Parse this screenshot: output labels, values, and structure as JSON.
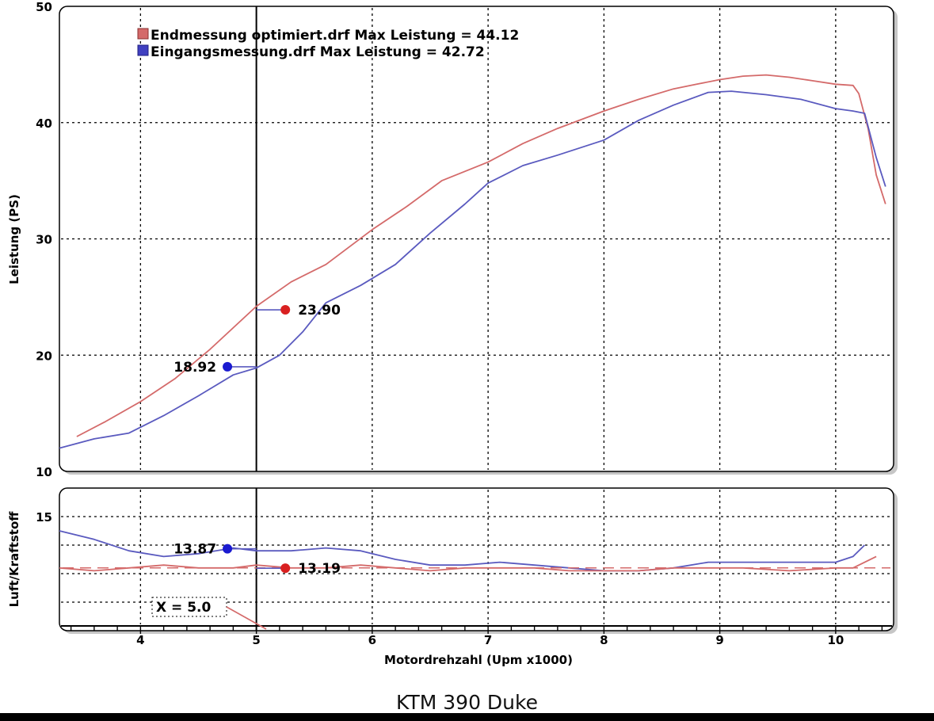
{
  "caption": "KTM 390 Duke",
  "colors": {
    "endmessung": "#d46a6a",
    "eingangsmessung": "#5a5abf",
    "marker_red": "#d92020",
    "marker_blue": "#1a1ad0"
  },
  "chart_data": [
    {
      "type": "line",
      "ylabel": "Leistung (PS)",
      "ylim": [
        10,
        50
      ],
      "yticks": [
        "10",
        "20",
        "30",
        "40",
        "50"
      ],
      "xlim": [
        3.3,
        10.5
      ],
      "grid": true,
      "legend": [
        "Endmessung optimiert.drf Max Leistung = 44.12",
        "Eingangsmessung.drf Max Leistung = 42.72"
      ],
      "cursor_x": 5.0,
      "series": [
        {
          "name": "Endmessung optimiert.drf",
          "x": [
            3.45,
            3.7,
            4.0,
            4.3,
            4.6,
            5.0,
            5.3,
            5.6,
            6.0,
            6.3,
            6.6,
            7.0,
            7.3,
            7.6,
            8.0,
            8.3,
            8.6,
            8.8,
            9.0,
            9.2,
            9.4,
            9.6,
            9.8,
            10.0,
            10.15,
            10.2,
            10.28,
            10.35,
            10.43
          ],
          "y": [
            13.0,
            14.3,
            16.0,
            18.0,
            20.5,
            24.2,
            26.3,
            27.8,
            30.8,
            32.8,
            35.0,
            36.6,
            38.2,
            39.5,
            41.0,
            42.0,
            42.9,
            43.3,
            43.7,
            44.0,
            44.1,
            43.9,
            43.6,
            43.3,
            43.2,
            42.5,
            39.5,
            35.5,
            33.0
          ]
        },
        {
          "name": "Eingangsmessung.drf",
          "x": [
            3.3,
            3.6,
            3.9,
            4.2,
            4.5,
            4.8,
            5.0,
            5.2,
            5.4,
            5.6,
            5.9,
            6.2,
            6.5,
            6.8,
            7.0,
            7.3,
            7.6,
            8.0,
            8.3,
            8.6,
            8.9,
            9.1,
            9.4,
            9.7,
            10.0,
            10.15,
            10.25,
            10.35,
            10.43
          ],
          "y": [
            12.0,
            12.8,
            13.3,
            14.8,
            16.5,
            18.3,
            18.9,
            20.0,
            22.0,
            24.5,
            26.0,
            27.8,
            30.5,
            33.0,
            34.8,
            36.3,
            37.2,
            38.5,
            40.2,
            41.5,
            42.6,
            42.7,
            42.4,
            42.0,
            41.2,
            41.0,
            40.8,
            37.0,
            34.5
          ]
        }
      ],
      "annotations": [
        {
          "text": "23.90",
          "x": 5.25,
          "y": 23.9,
          "series": "Endmessung optimiert.drf"
        },
        {
          "text": "18.92",
          "x": 4.75,
          "y": 19.0,
          "series": "Eingangsmessung.drf"
        }
      ]
    },
    {
      "type": "line",
      "ylabel": "Luft/Kraftstoff",
      "ylim": [
        11,
        16
      ],
      "yticks": [
        "15"
      ],
      "xlim": [
        3.3,
        10.5
      ],
      "xlabel": "Motordrehzahl (Upm x1000)",
      "xticks": [
        "4",
        "5",
        "6",
        "7",
        "8",
        "9",
        "10"
      ],
      "grid": true,
      "cursor_x": 5.0,
      "cursor_label": "X = 5.0",
      "series": [
        {
          "name": "Eingangsmessung.drf",
          "x": [
            3.3,
            3.6,
            3.9,
            4.2,
            4.5,
            4.8,
            5.0,
            5.3,
            5.6,
            5.9,
            6.2,
            6.5,
            6.8,
            7.1,
            7.4,
            7.7,
            8.0,
            8.3,
            8.6,
            8.9,
            9.2,
            9.6,
            10.0,
            10.15,
            10.25
          ],
          "y": [
            14.5,
            14.2,
            13.8,
            13.6,
            13.7,
            13.9,
            13.8,
            13.8,
            13.9,
            13.8,
            13.5,
            13.3,
            13.3,
            13.4,
            13.3,
            13.2,
            13.1,
            13.1,
            13.2,
            13.4,
            13.4,
            13.4,
            13.4,
            13.6,
            14.0
          ]
        },
        {
          "name": "Endmessung optimiert.drf",
          "x": [
            3.3,
            3.6,
            3.9,
            4.2,
            4.5,
            4.8,
            5.0,
            5.3,
            5.6,
            5.9,
            6.2,
            6.5,
            6.8,
            7.1,
            7.4,
            7.7,
            8.0,
            8.3,
            8.6,
            8.9,
            9.2,
            9.6,
            10.0,
            10.15,
            10.35
          ],
          "y": [
            13.2,
            13.1,
            13.2,
            13.3,
            13.2,
            13.2,
            13.3,
            13.2,
            13.2,
            13.3,
            13.2,
            13.1,
            13.2,
            13.2,
            13.2,
            13.1,
            13.1,
            13.1,
            13.2,
            13.2,
            13.2,
            13.1,
            13.2,
            13.2,
            13.6
          ]
        }
      ],
      "annotations": [
        {
          "text": "13.87",
          "x": 4.75,
          "y": 13.87,
          "series": "Eingangsmessung.drf"
        },
        {
          "text": "13.19",
          "x": 5.25,
          "y": 13.19,
          "series": "Endmessung optimiert.drf"
        }
      ]
    }
  ]
}
